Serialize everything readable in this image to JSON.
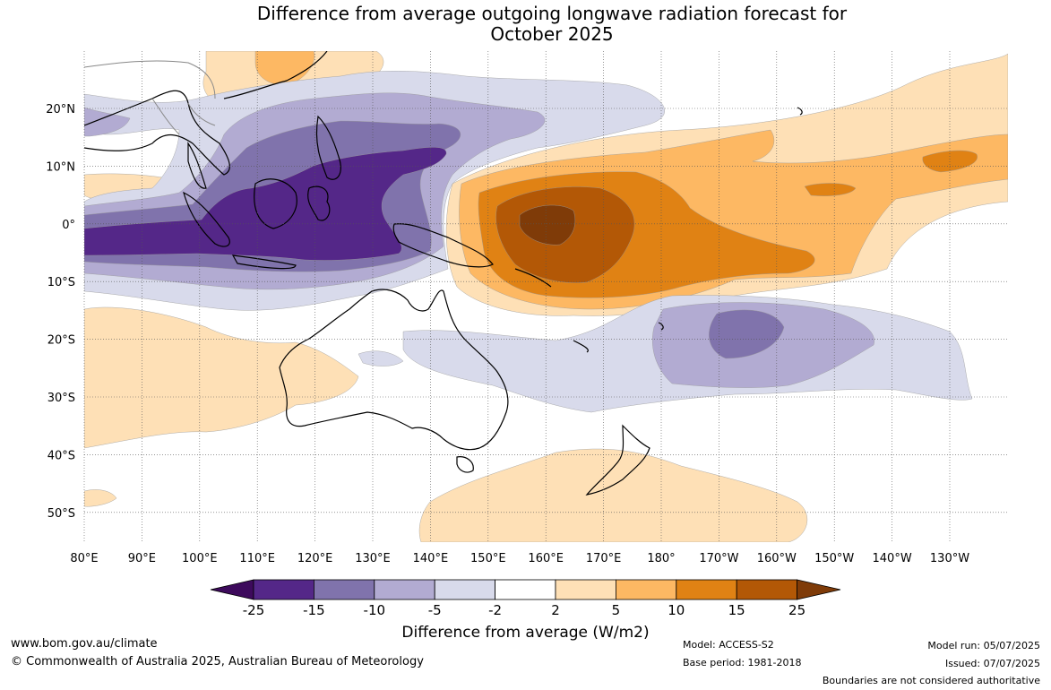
{
  "title_line1": "Difference from average outgoing longwave radiation forecast for",
  "title_line2": "October 2025",
  "lat_labels": [
    "20°N",
    "10°N",
    "0°",
    "10°S",
    "20°S",
    "30°S",
    "40°S",
    "50°S"
  ],
  "lon_labels": [
    "80°E",
    "90°E",
    "100°E",
    "110°E",
    "120°E",
    "130°E",
    "140°E",
    "150°E",
    "160°E",
    "170°E",
    "180°",
    "170°W",
    "160°W",
    "150°W",
    "140°W",
    "130°W"
  ],
  "colorbar": {
    "ticks": [
      "-25",
      "-15",
      "-10",
      "-5",
      "-2",
      "2",
      "5",
      "10",
      "15",
      "25"
    ],
    "colors": {
      "lt25": "#3d0a5c",
      "b1": "#542788",
      "b2": "#8073ac",
      "b3": "#b2abd2",
      "b4": "#d8daeb",
      "b5": "#ffffff",
      "b6": "#fee0b6",
      "b7": "#fdb863",
      "b8": "#e08214",
      "b9": "#b35806",
      "gt25": "#7f3b08"
    },
    "title": "Difference from average (W/m2)"
  },
  "footer": {
    "url": "www.bom.gov.au/climate",
    "copyright": "© Commonwealth of Australia 2025, Australian Bureau of Meteorology",
    "model": "Model: ACCESS-S2",
    "base_period": "Base period: 1981-2018",
    "model_run": "Model run: 05/07/2025",
    "issued": "Issued: 07/07/2025",
    "disclaimer": "Boundaries are not considered authoritative"
  }
}
